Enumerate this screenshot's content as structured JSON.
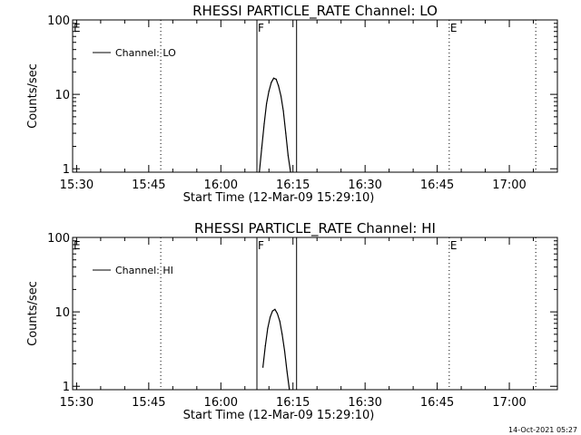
{
  "footer": "14-Oct-2021 05:27",
  "chart_data": [
    {
      "type": "line",
      "title": "RHESSI PARTICLE_RATE Channel: LO",
      "xlabel": "Start Time (12-Mar-09 15:29:10)",
      "ylabel": "Counts/sec",
      "xlim": [
        "15:29:10",
        "17:10:00"
      ],
      "ylim": [
        0.9,
        100
      ],
      "yscale": "log",
      "x_ticks": [
        "15:30",
        "15:45",
        "16:00",
        "16:15",
        "16:30",
        "16:45",
        "17:00"
      ],
      "y_ticks": [
        "1",
        "10",
        "100"
      ],
      "legend": {
        "location": "top-left",
        "entries": [
          "Channel: LO"
        ]
      },
      "grid": false,
      "series": [
        {
          "name": "Channel: LO",
          "color": "#000000",
          "x": [
            "16:08:00",
            "16:08:30",
            "16:09:00",
            "16:09:30",
            "16:10:00",
            "16:10:30",
            "16:11:00",
            "16:11:30",
            "16:12:00",
            "16:12:30",
            "16:13:00",
            "16:13:30",
            "16:14:00",
            "16:14:30"
          ],
          "y": [
            0.9,
            1.9,
            4.0,
            7.5,
            11.0,
            14.5,
            16.5,
            16.0,
            13.0,
            9.5,
            6.0,
            3.0,
            1.5,
            0.9
          ]
        }
      ],
      "vertical_lines": [
        {
          "time": "15:47:30",
          "style": "dotted"
        },
        {
          "time": "16:07:30",
          "style": "solid",
          "label": "F"
        },
        {
          "time": "16:15:45",
          "style": "solid"
        },
        {
          "time": "16:47:30",
          "style": "dotted",
          "label": "E"
        },
        {
          "time": "17:05:30",
          "style": "dotted"
        }
      ],
      "region_labels": [
        {
          "time": "15:29:10",
          "text": "E"
        }
      ]
    },
    {
      "type": "line",
      "title": "RHESSI PARTICLE_RATE Channel: HI",
      "xlabel": "Start Time (12-Mar-09 15:29:10)",
      "ylabel": "Counts/sec",
      "xlim": [
        "15:29:10",
        "17:10:00"
      ],
      "ylim": [
        0.9,
        100
      ],
      "yscale": "log",
      "x_ticks": [
        "15:30",
        "15:45",
        "16:00",
        "16:15",
        "16:30",
        "16:45",
        "17:00"
      ],
      "y_ticks": [
        "1",
        "10",
        "100"
      ],
      "legend": {
        "location": "top-left",
        "entries": [
          "Channel: HI"
        ]
      },
      "grid": false,
      "series": [
        {
          "name": "Channel: HI",
          "color": "#000000",
          "x": [
            "16:08:45",
            "16:09:15",
            "16:09:45",
            "16:10:15",
            "16:10:45",
            "16:11:15",
            "16:11:45",
            "16:12:15",
            "16:12:45",
            "16:13:15",
            "16:13:45",
            "16:14:15"
          ],
          "y": [
            1.8,
            3.5,
            6.0,
            8.5,
            10.3,
            10.8,
            9.5,
            7.5,
            5.0,
            3.0,
            1.6,
            0.9
          ]
        }
      ],
      "vertical_lines": [
        {
          "time": "15:47:30",
          "style": "dotted"
        },
        {
          "time": "16:07:30",
          "style": "solid",
          "label": "F"
        },
        {
          "time": "16:15:45",
          "style": "solid"
        },
        {
          "time": "16:47:30",
          "style": "dotted",
          "label": "E"
        },
        {
          "time": "17:05:30",
          "style": "dotted"
        }
      ],
      "region_labels": [
        {
          "time": "15:29:10",
          "text": "E"
        }
      ]
    }
  ]
}
